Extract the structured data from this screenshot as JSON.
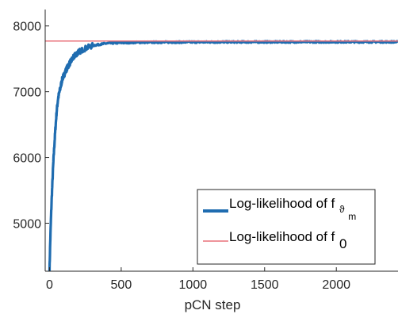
{
  "chart_data": {
    "type": "line",
    "title": "",
    "xlabel": "pCN step",
    "ylabel": "",
    "xlim": [
      -30,
      2430
    ],
    "ylim": [
      4270,
      8250
    ],
    "grid": false,
    "legend_position": "bottom-right",
    "xticks": [
      0,
      500,
      1000,
      1500,
      2000
    ],
    "yticks": [
      5000,
      6000,
      7000,
      8000
    ],
    "xtick_labels": [
      "0",
      "500",
      "1000",
      "1500",
      "2000"
    ],
    "ytick_labels": [
      "5000",
      "6000",
      "7000",
      "8000"
    ],
    "series": [
      {
        "name": "Log-likelihood of f",
        "name_subscript": "ϑ",
        "name_subsubscript": "m",
        "color": "#1f6cb0",
        "style": "thick-noisy",
        "x": [
          0,
          5,
          10,
          15,
          20,
          25,
          30,
          40,
          50,
          60,
          70,
          80,
          90,
          100,
          120,
          140,
          160,
          180,
          200,
          250,
          300,
          350,
          400,
          500,
          600,
          700,
          800,
          1000,
          1200,
          1500,
          2000,
          2430
        ],
        "y": [
          4270,
          4700,
          5050,
          5350,
          5600,
          5850,
          6050,
          6400,
          6700,
          6900,
          7000,
          7100,
          7200,
          7250,
          7350,
          7430,
          7500,
          7560,
          7600,
          7660,
          7700,
          7720,
          7735,
          7745,
          7750,
          7752,
          7753,
          7755,
          7756,
          7757,
          7758,
          7758
        ]
      },
      {
        "name": "Log-likelihood of f",
        "name_subscript": "0",
        "color": "#e8707a",
        "style": "thin-constant",
        "x": [
          -30,
          2430
        ],
        "y": [
          7770,
          7770
        ]
      }
    ]
  }
}
